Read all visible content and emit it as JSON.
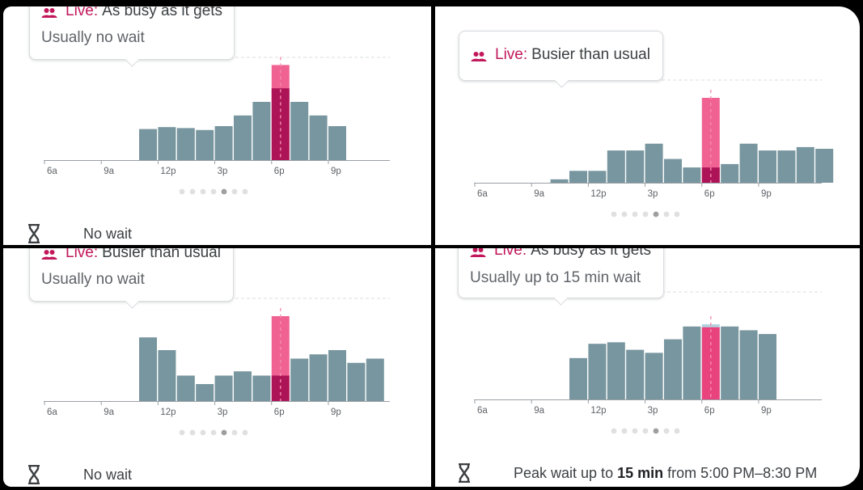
{
  "colors": {
    "bar": "#78969f",
    "live_dark": "#ad1457",
    "live_light": "#f06292",
    "live_mid": "#e8437d",
    "usual_cap": "#b3d4e0",
    "accent": "#c2185b"
  },
  "icons": {
    "people": "people-icon",
    "hourglass": "hourglass-icon"
  },
  "panels": [
    {
      "live_label": "Live:",
      "live_status": "As busy as it gets",
      "wait_text": "Usually no wait",
      "footer": {
        "prefix": "No wait",
        "strong": "",
        "suffix": ""
      },
      "page_dots": {
        "count": 7,
        "active": 4
      }
    },
    {
      "live_label": "Live:",
      "live_status": "Busier than usual",
      "wait_text": "",
      "footer": {
        "prefix": "",
        "strong": "",
        "suffix": ""
      },
      "page_dots": {
        "count": 7,
        "active": 4
      }
    },
    {
      "live_label": "Live:",
      "live_status": "Busier than usual",
      "wait_text": "Usually no wait",
      "footer": {
        "prefix": "No wait",
        "strong": "",
        "suffix": ""
      },
      "page_dots": {
        "count": 7,
        "active": 4
      }
    },
    {
      "live_label": "Live:",
      "live_status": "As busy as it gets",
      "wait_text": "Usually up to 15 min wait",
      "footer": {
        "prefix": "Peak wait up to ",
        "strong": "15 min",
        "suffix": " from 5:00 PM–8:30 PM"
      },
      "page_dots": {
        "count": 7,
        "active": 4
      }
    }
  ],
  "chart_data": [
    {
      "type": "bar",
      "title": "",
      "xlabel": "",
      "ylabel": "",
      "categories": [
        "6a",
        "7a",
        "8a",
        "9a",
        "10a",
        "11a",
        "12p",
        "1p",
        "2p",
        "3p",
        "4p",
        "5p",
        "6p",
        "7p",
        "8p",
        "9p",
        "10p",
        "11p"
      ],
      "tick_labels": [
        "6a",
        "9a",
        "12p",
        "3p",
        "6p",
        "9p"
      ],
      "series": [
        {
          "values": [
            0,
            0,
            0,
            0,
            0,
            0.32,
            0.34,
            0.33,
            0.31,
            0.35,
            0.46,
            0.6,
            0.74,
            0.6,
            0.46,
            0.35,
            0,
            0
          ]
        }
      ],
      "live": {
        "hour": "6p",
        "value": 0.98
      },
      "ylim": [
        0,
        1.05
      ],
      "grid": false
    },
    {
      "type": "bar",
      "title": "",
      "xlabel": "",
      "ylabel": "",
      "categories": [
        "6a",
        "7a",
        "8a",
        "9a",
        "10a",
        "11a",
        "12p",
        "1p",
        "2p",
        "3p",
        "4p",
        "5p",
        "6p",
        "7p",
        "8p",
        "9p",
        "10p",
        "11p",
        "12a"
      ],
      "tick_labels": [
        "6a",
        "9a",
        "12p",
        "3p",
        "6p",
        "9p"
      ],
      "series": [
        {
          "values": [
            0,
            0,
            0,
            0,
            0.04,
            0.14,
            0.14,
            0.38,
            0.38,
            0.46,
            0.28,
            0.18,
            0.18,
            0.22,
            0.46,
            0.38,
            0.38,
            0.42,
            0.4
          ]
        }
      ],
      "live": {
        "hour": "6p",
        "value": 1.0
      },
      "ylim": [
        0,
        1.05
      ],
      "grid": false
    },
    {
      "type": "bar",
      "title": "",
      "xlabel": "",
      "ylabel": "",
      "categories": [
        "6a",
        "7a",
        "8a",
        "9a",
        "10a",
        "11a",
        "12p",
        "1p",
        "2p",
        "3p",
        "4p",
        "5p",
        "6p",
        "7p",
        "8p",
        "9p",
        "10p",
        "11p"
      ],
      "tick_labels": [
        "6a",
        "9a",
        "12p",
        "3p",
        "6p",
        "9p"
      ],
      "series": [
        {
          "values": [
            0,
            0,
            0,
            0,
            0,
            0.75,
            0.6,
            0.3,
            0.2,
            0.3,
            0.35,
            0.3,
            0.3,
            0.5,
            0.55,
            0.6,
            0.45,
            0.5
          ]
        }
      ],
      "live": {
        "hour": "6p",
        "value": 1.0
      },
      "ylim": [
        0,
        1.05
      ],
      "grid": false
    },
    {
      "type": "bar",
      "title": "",
      "xlabel": "",
      "ylabel": "",
      "categories": [
        "6a",
        "7a",
        "8a",
        "9a",
        "10a",
        "11a",
        "12p",
        "1p",
        "2p",
        "3p",
        "4p",
        "5p",
        "6p",
        "7p",
        "8p",
        "9p",
        "10p"
      ],
      "tick_labels": [
        "6a",
        "9a",
        "12p",
        "3p",
        "6p",
        "9p"
      ],
      "series": [
        {
          "values": [
            0,
            0,
            0,
            0,
            0,
            0.55,
            0.74,
            0.76,
            0.66,
            0.62,
            0.8,
            0.97,
            1.0,
            0.97,
            0.92,
            0.87,
            0
          ]
        }
      ],
      "live": {
        "hour": "6p",
        "value": 0.96
      },
      "ylim": [
        0,
        1.05
      ],
      "grid": false
    }
  ]
}
